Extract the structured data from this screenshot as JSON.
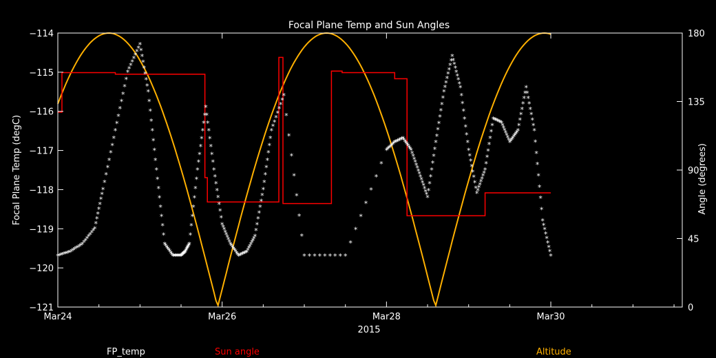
{
  "chart_data": {
    "type": "line",
    "title": "Focal Plane Temp and Sun Angles",
    "xlabel": "2015",
    "ylabel_left": "Focal Plane Temp (degC)",
    "ylabel_right": "Angle (degrees)",
    "x_unit": "days since Mar24 00:00",
    "xlim": [
      0,
      7.6
    ],
    "ylim_left": [
      -121,
      -114
    ],
    "ylim_right": [
      0,
      180
    ],
    "x_ticks": [
      {
        "x": 0,
        "label": "Mar24"
      },
      {
        "x": 2,
        "label": "Mar26"
      },
      {
        "x": 4,
        "label": "Mar28"
      },
      {
        "x": 6,
        "label": "Mar30"
      }
    ],
    "y_ticks_left": [
      "-114",
      "-115",
      "-116",
      "-117",
      "-118",
      "-119",
      "-120",
      "-121"
    ],
    "y_ticks_right": [
      "180",
      "135",
      "90",
      "45",
      "0"
    ],
    "legend": [
      {
        "label": "FP_temp",
        "color": "#ffffff"
      },
      {
        "label": "Sun angle",
        "color": "#ff0000"
      },
      {
        "label": "Altitude",
        "color": "#ffb000"
      }
    ],
    "series": [
      {
        "name": "FP_temp",
        "axis": "left",
        "color": "#ffffff",
        "marker": "star",
        "x": [
          0.0,
          0.15,
          0.3,
          0.45,
          0.55,
          0.7,
          0.85,
          1.0,
          1.1,
          1.2,
          1.3,
          1.4,
          1.5,
          1.55,
          1.6,
          1.7,
          1.8,
          1.9,
          2.0,
          2.1,
          2.2,
          2.3,
          2.4,
          2.5,
          2.6,
          2.75,
          3.0,
          3.5,
          4.0,
          4.1,
          4.2,
          4.3,
          4.4,
          4.5,
          4.6,
          4.7,
          4.8,
          4.9,
          5.0,
          5.1,
          5.2,
          5.3,
          5.4,
          5.5,
          5.6,
          5.7,
          5.8,
          5.9,
          6.0
        ],
        "values": [
          -119.7,
          -119.6,
          -119.4,
          -119.0,
          -118.0,
          -116.5,
          -115.0,
          -114.3,
          -115.5,
          -117.5,
          -119.4,
          -119.7,
          -119.7,
          -119.6,
          -119.4,
          -117.5,
          -115.9,
          -117.5,
          -118.9,
          -119.4,
          -119.7,
          -119.6,
          -119.2,
          -118.0,
          -116.5,
          -115.6,
          -119.7,
          -119.7,
          -117.0,
          -116.8,
          -116.7,
          -117.0,
          -117.6,
          -118.2,
          -116.8,
          -115.5,
          -114.6,
          -115.4,
          -117.0,
          -118.1,
          -117.5,
          -116.2,
          -116.3,
          -116.8,
          -116.5,
          -115.4,
          -116.5,
          -118.8,
          -119.7
        ]
      },
      {
        "name": "Sun angle",
        "axis": "right",
        "color": "#ff0000",
        "step": true,
        "x": [
          0.0,
          0.05,
          0.7,
          0.9,
          1.25,
          1.55,
          1.62,
          1.79,
          1.82,
          1.96,
          2.0,
          2.07,
          2.3,
          2.69,
          2.74,
          2.96,
          3.3,
          3.33,
          3.46,
          3.55,
          3.61,
          4.1,
          4.13,
          4.25,
          4.3,
          4.67,
          4.7,
          4.88,
          4.91,
          5.2,
          5.23,
          5.55,
          5.61,
          5.81,
          6.0
        ],
        "values": [
          128,
          154,
          153,
          153,
          153,
          153,
          153,
          85,
          69,
          69,
          69,
          69,
          69,
          164,
          68,
          68,
          68,
          155,
          154,
          154,
          154,
          150,
          150,
          60,
          60,
          60,
          60,
          60,
          60,
          75,
          75,
          75,
          75,
          75,
          75
        ]
      },
      {
        "name": "Altitude",
        "axis": "right",
        "color": "#ffb000",
        "x": [],
        "values": []
      }
    ]
  }
}
